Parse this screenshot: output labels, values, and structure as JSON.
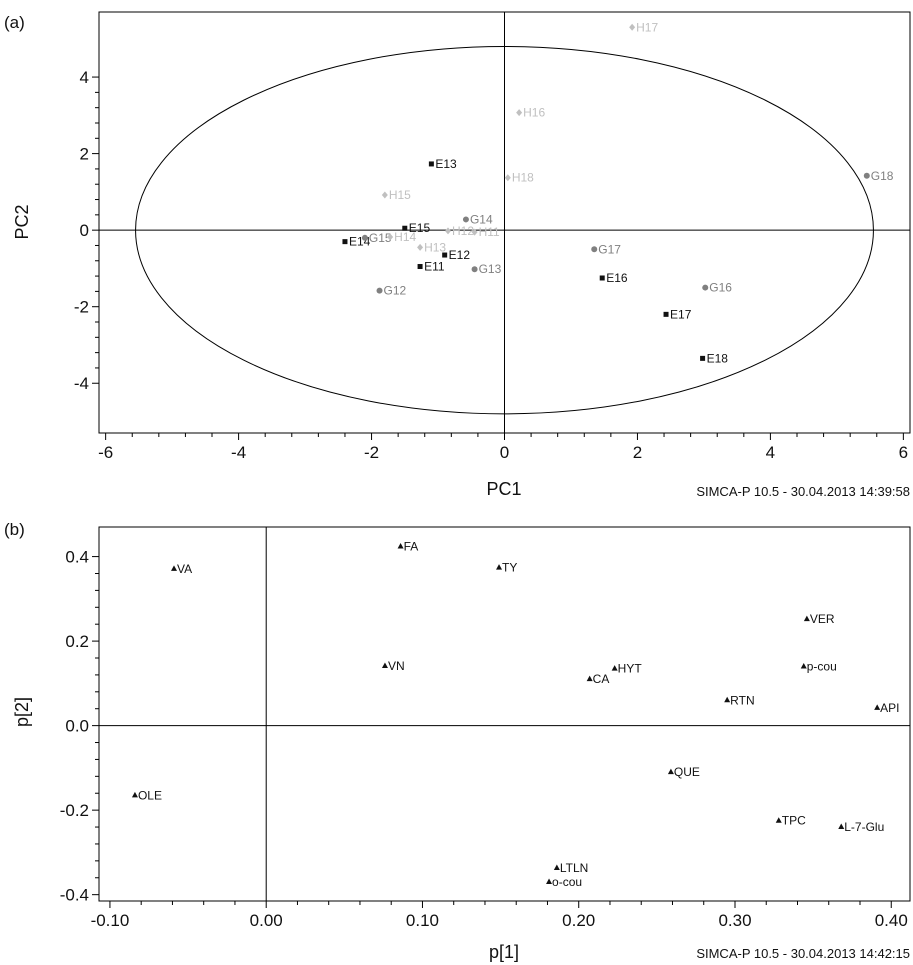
{
  "chart_data": [
    {
      "type": "scatter",
      "panel_label": "(a)",
      "xlabel": "PC1",
      "ylabel": "PC2",
      "xlim": [
        -6.1,
        6.1
      ],
      "ylim": [
        -5.3,
        5.7
      ],
      "xticks": [
        -6,
        -4,
        -2,
        0,
        2,
        4,
        6
      ],
      "yticks": [
        -4,
        -2,
        0,
        2,
        4
      ],
      "ellipse": {
        "rx": 5.55,
        "ry": 4.8
      },
      "footer": "SIMCA-P 10.5 - 30.04.2013 14:39:58",
      "colors": {
        "E": "#111111",
        "G": "#808080",
        "H": "#c0c0c0"
      },
      "points": [
        {
          "label": "E11",
          "group": "E",
          "x": -1.27,
          "y": -0.95
        },
        {
          "label": "E12",
          "group": "E",
          "x": -0.9,
          "y": -0.65
        },
        {
          "label": "E13",
          "group": "E",
          "x": -1.1,
          "y": 1.73
        },
        {
          "label": "E14",
          "group": "E",
          "x": -2.4,
          "y": -0.3
        },
        {
          "label": "E15",
          "group": "E",
          "x": -1.5,
          "y": 0.05
        },
        {
          "label": "E16",
          "group": "E",
          "x": 1.47,
          "y": -1.25
        },
        {
          "label": "E17",
          "group": "E",
          "x": 2.43,
          "y": -2.2
        },
        {
          "label": "E18",
          "group": "E",
          "x": 2.98,
          "y": -3.35
        },
        {
          "label": "G12",
          "group": "G",
          "x": -1.88,
          "y": -1.58
        },
        {
          "label": "G13",
          "group": "G",
          "x": -0.45,
          "y": -1.02
        },
        {
          "label": "G14",
          "group": "G",
          "x": -0.58,
          "y": 0.28
        },
        {
          "label": "G15",
          "group": "G",
          "x": -2.1,
          "y": -0.2
        },
        {
          "label": "G16",
          "group": "G",
          "x": 3.02,
          "y": -1.5
        },
        {
          "label": "G17",
          "group": "G",
          "x": 1.35,
          "y": -0.5
        },
        {
          "label": "G18",
          "group": "G",
          "x": 5.45,
          "y": 1.42
        },
        {
          "label": "H11",
          "group": "H",
          "x": -0.45,
          "y": -0.05
        },
        {
          "label": "H12",
          "group": "H",
          "x": -0.85,
          "y": -0.02
        },
        {
          "label": "H13",
          "group": "H",
          "x": -1.27,
          "y": -0.45
        },
        {
          "label": "H14",
          "group": "H",
          "x": -1.72,
          "y": -0.18
        },
        {
          "label": "H15",
          "group": "H",
          "x": -1.8,
          "y": 0.92
        },
        {
          "label": "H16",
          "group": "H",
          "x": 0.22,
          "y": 3.07
        },
        {
          "label": "H17",
          "group": "H",
          "x": 1.92,
          "y": 5.3
        },
        {
          "label": "H18",
          "group": "H",
          "x": 0.05,
          "y": 1.37
        }
      ]
    },
    {
      "type": "scatter",
      "panel_label": "(b)",
      "xlabel": "p[1]",
      "ylabel": "p[2]",
      "xlim": [
        -0.107,
        0.412
      ],
      "ylim": [
        -0.415,
        0.47
      ],
      "xticks": [
        -0.1,
        0.0,
        0.1,
        0.2,
        0.3,
        0.4
      ],
      "xtick_labels": [
        "-0.10",
        "0.00",
        "0.10",
        "0.20",
        "0.30",
        "0.40"
      ],
      "yticks": [
        -0.4,
        -0.2,
        0.0,
        0.2,
        0.4
      ],
      "ytick_labels": [
        "-0.4",
        "-0.2",
        "0.0",
        "0.2",
        "0.4"
      ],
      "footer": "SIMCA-P 10.5 - 30.04.2013 14:42:15",
      "points": [
        {
          "label": "VA",
          "x": -0.059,
          "y": 0.371
        },
        {
          "label": "FA",
          "x": 0.086,
          "y": 0.424
        },
        {
          "label": "TY",
          "x": 0.149,
          "y": 0.374
        },
        {
          "label": "VER",
          "x": 0.346,
          "y": 0.252
        },
        {
          "label": "VN",
          "x": 0.076,
          "y": 0.141
        },
        {
          "label": "HYT",
          "x": 0.223,
          "y": 0.135
        },
        {
          "label": "CA",
          "x": 0.207,
          "y": 0.11
        },
        {
          "label": "p-cou",
          "x": 0.344,
          "y": 0.14
        },
        {
          "label": "RTN",
          "x": 0.295,
          "y": 0.06
        },
        {
          "label": "API",
          "x": 0.391,
          "y": 0.042
        },
        {
          "label": "QUE",
          "x": 0.259,
          "y": -0.11
        },
        {
          "label": "OLE",
          "x": -0.084,
          "y": -0.165
        },
        {
          "label": "TPC",
          "x": 0.328,
          "y": -0.225
        },
        {
          "label": "L-7-Glu",
          "x": 0.368,
          "y": -0.24
        },
        {
          "label": "LTLN",
          "x": 0.186,
          "y": -0.337
        },
        {
          "label": "o-cou",
          "x": 0.181,
          "y": -0.37
        }
      ]
    }
  ]
}
